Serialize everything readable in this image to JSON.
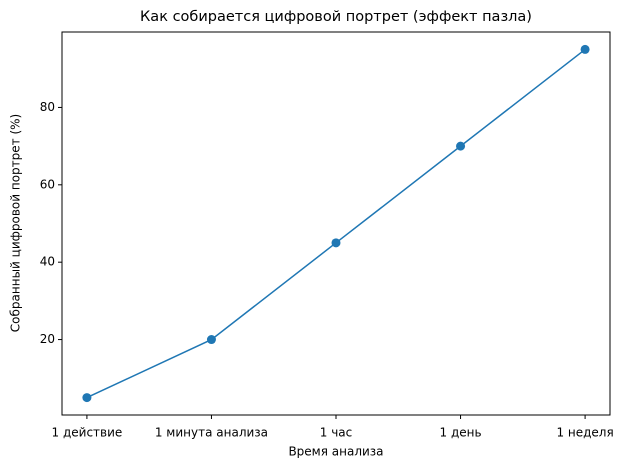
{
  "chart_data": {
    "type": "line",
    "title": "Как собирается цифровой портрет (эффект пазла)",
    "xlabel": "Время анализа",
    "ylabel": "Собранный цифровой портрет (%)",
    "categories": [
      "1 действие",
      "1 минута анализа",
      "1 час",
      "1 день",
      "1 неделя"
    ],
    "values": [
      5,
      20,
      45,
      70,
      95
    ],
    "color": "#1f77b4",
    "marker": true,
    "ylim": [
      0.5,
      99.5
    ],
    "yticks": [
      20,
      40,
      60,
      80
    ]
  }
}
